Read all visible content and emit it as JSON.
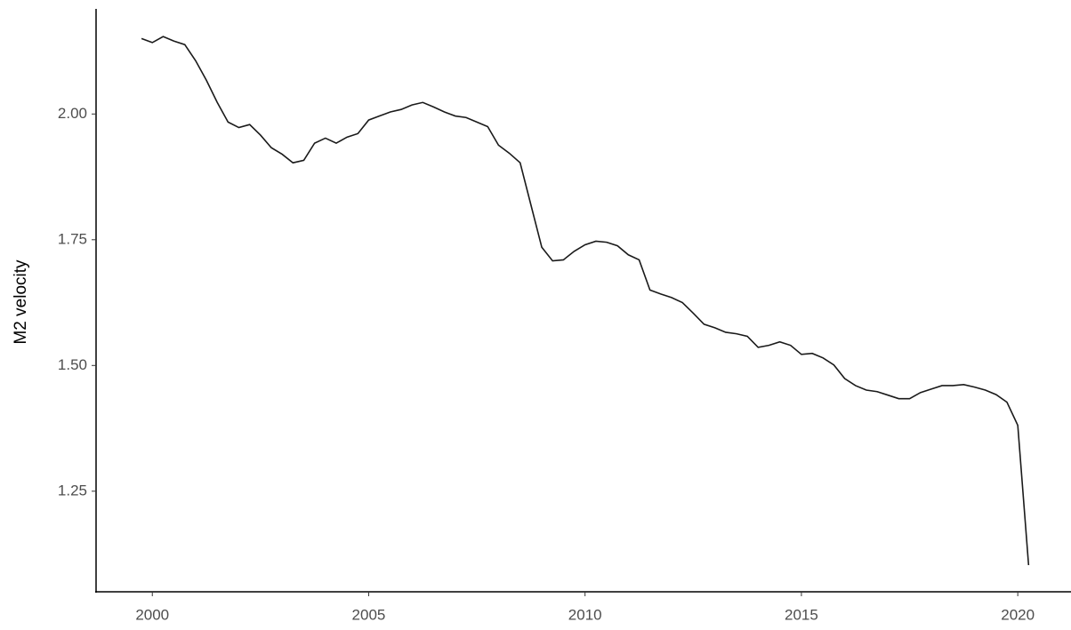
{
  "chart_data": {
    "type": "line",
    "y_label": "M2 velocity",
    "x": [
      1999.75,
      2000,
      2000.25,
      2000.5,
      2000.75,
      2001,
      2001.25,
      2001.5,
      2001.75,
      2002,
      2002.25,
      2002.5,
      2002.75,
      2003,
      2003.25,
      2003.5,
      2003.75,
      2004,
      2004.25,
      2004.5,
      2004.75,
      2005,
      2005.25,
      2005.5,
      2005.75,
      2006,
      2006.25,
      2006.5,
      2006.75,
      2007,
      2007.25,
      2007.5,
      2007.75,
      2008,
      2008.25,
      2008.5,
      2008.75,
      2009,
      2009.25,
      2009.5,
      2009.75,
      2010,
      2010.25,
      2010.5,
      2010.75,
      2011,
      2011.25,
      2011.5,
      2011.75,
      2012,
      2012.25,
      2012.5,
      2012.75,
      2013,
      2013.25,
      2013.5,
      2013.75,
      2014,
      2014.25,
      2014.5,
      2014.75,
      2015,
      2015.25,
      2015.5,
      2015.75,
      2016,
      2016.25,
      2016.5,
      2016.75,
      2017,
      2017.25,
      2017.5,
      2017.75,
      2018,
      2018.25,
      2018.5,
      2018.75,
      2019,
      2019.25,
      2019.5,
      2019.75,
      2020,
      2020.25
    ],
    "series": [
      {
        "color": "#1a1a1a",
        "values": [
          2.15,
          2.142,
          2.154,
          2.145,
          2.138,
          2.106,
          2.067,
          2.023,
          1.984,
          1.973,
          1.979,
          1.958,
          1.933,
          1.92,
          1.903,
          1.908,
          1.942,
          1.952,
          1.942,
          1.954,
          1.961,
          1.988,
          1.996,
          2.004,
          2.009,
          2.018,
          2.023,
          2.014,
          2.004,
          1.996,
          1.993,
          1.984,
          1.975,
          1.938,
          1.922,
          1.903,
          1.819,
          1.735,
          1.708,
          1.71,
          1.727,
          1.74,
          1.747,
          1.745,
          1.738,
          1.72,
          1.71,
          1.65,
          1.642,
          1.635,
          1.625,
          1.604,
          1.582,
          1.575,
          1.566,
          1.563,
          1.558,
          1.536,
          1.54,
          1.547,
          1.54,
          1.522,
          1.524,
          1.515,
          1.501,
          1.474,
          1.46,
          1.451,
          1.448,
          1.441,
          1.434,
          1.434,
          1.446,
          1.453,
          1.46,
          1.46,
          1.462,
          1.457,
          1.451,
          1.442,
          1.427,
          1.381,
          1.103
        ]
      }
    ],
    "xlim": [
      1998.7,
      2021.23
    ],
    "ylim": [
      1.05,
      2.209
    ],
    "xticks": [
      2000,
      2005,
      2010,
      2015,
      2020
    ],
    "yticks": [
      1.25,
      {
        "value": 1.5,
        "label": "1.50"
      },
      1.75,
      {
        "value": 2,
        "label": "2.00"
      }
    ],
    "grid": false
  }
}
